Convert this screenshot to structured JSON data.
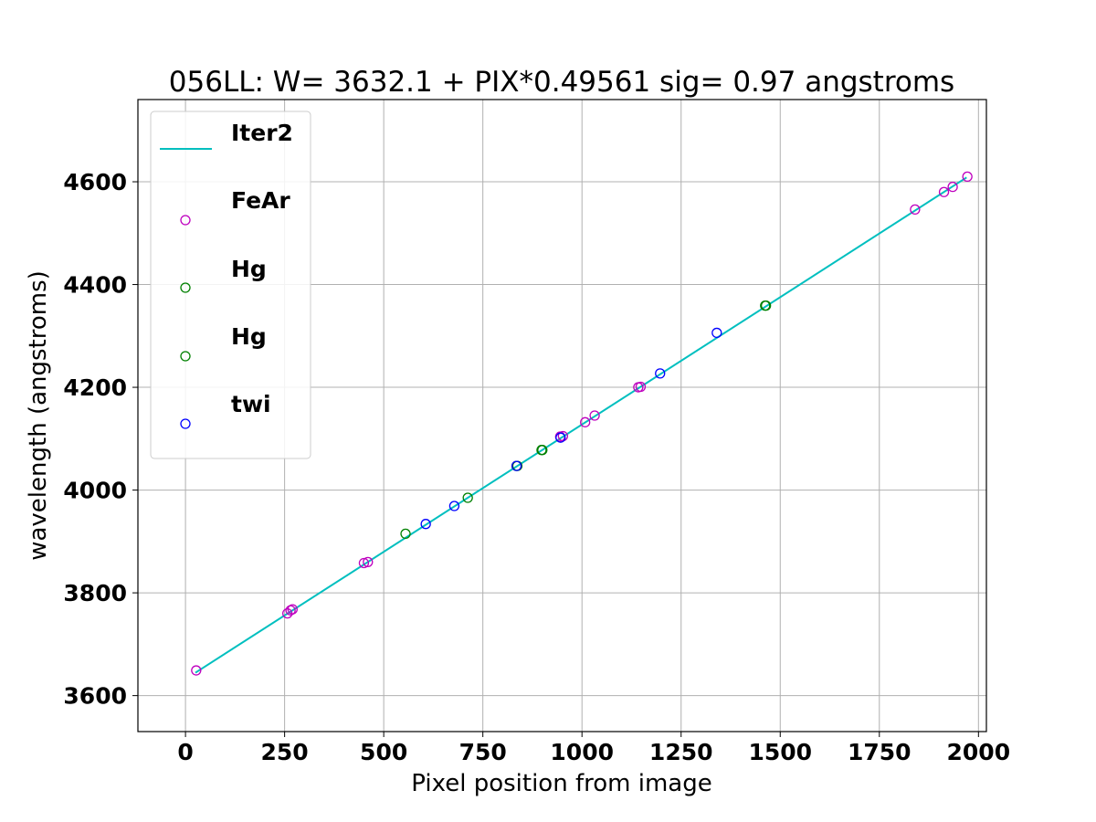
{
  "chart_data": {
    "type": "scatter",
    "title": "056LL: W= 3632.1 + PIX*0.49561  sig=  0.97 angstroms",
    "xlabel": "Pixel position from image",
    "ylabel": "wavelength (angstroms)",
    "xlim": [
      -120,
      2020
    ],
    "ylim": [
      3530,
      4760
    ],
    "xticks": [
      0,
      250,
      500,
      750,
      1000,
      1250,
      1500,
      1750,
      2000
    ],
    "yticks": [
      3600,
      3800,
      4000,
      4200,
      4400,
      4600
    ],
    "grid": true,
    "legend_position": "upper-left",
    "fit_line": {
      "name": "Iter2",
      "color": "#00bfbf",
      "x": [
        25,
        1970
      ],
      "y": [
        3644.5,
        4608.4
      ]
    },
    "series": [
      {
        "name": "FeAr",
        "color": "#bf00bf",
        "marker": "open-circle",
        "points": [
          [
            27,
            3649
          ],
          [
            257,
            3760
          ],
          [
            265,
            3766
          ],
          [
            270,
            3768
          ],
          [
            450,
            3858
          ],
          [
            460,
            3860
          ],
          [
            945,
            4104
          ],
          [
            952,
            4105
          ],
          [
            1008,
            4132
          ],
          [
            1032,
            4145
          ],
          [
            1142,
            4200
          ],
          [
            1148,
            4201
          ],
          [
            1840,
            4546
          ],
          [
            1913,
            4580
          ],
          [
            1935,
            4590
          ],
          [
            1972,
            4610
          ]
        ]
      },
      {
        "name": "Hg",
        "color": "#008000",
        "marker": "open-circle",
        "points": [
          [
            555,
            3915
          ],
          [
            712,
            3985
          ],
          [
            835,
            4047
          ],
          [
            898,
            4078
          ],
          [
            1462,
            4359
          ]
        ]
      },
      {
        "name": "Hg",
        "color": "#008000",
        "marker": "open-circle",
        "points": [
          [
            837,
            4047
          ],
          [
            900,
            4078
          ],
          [
            1464,
            4359
          ]
        ]
      },
      {
        "name": "twi",
        "color": "#0000ff",
        "marker": "open-circle",
        "points": [
          [
            606,
            3934
          ],
          [
            678,
            3969
          ],
          [
            835,
            4047
          ],
          [
            946,
            4102
          ],
          [
            1197,
            4227
          ],
          [
            1340,
            4306
          ]
        ]
      }
    ]
  }
}
